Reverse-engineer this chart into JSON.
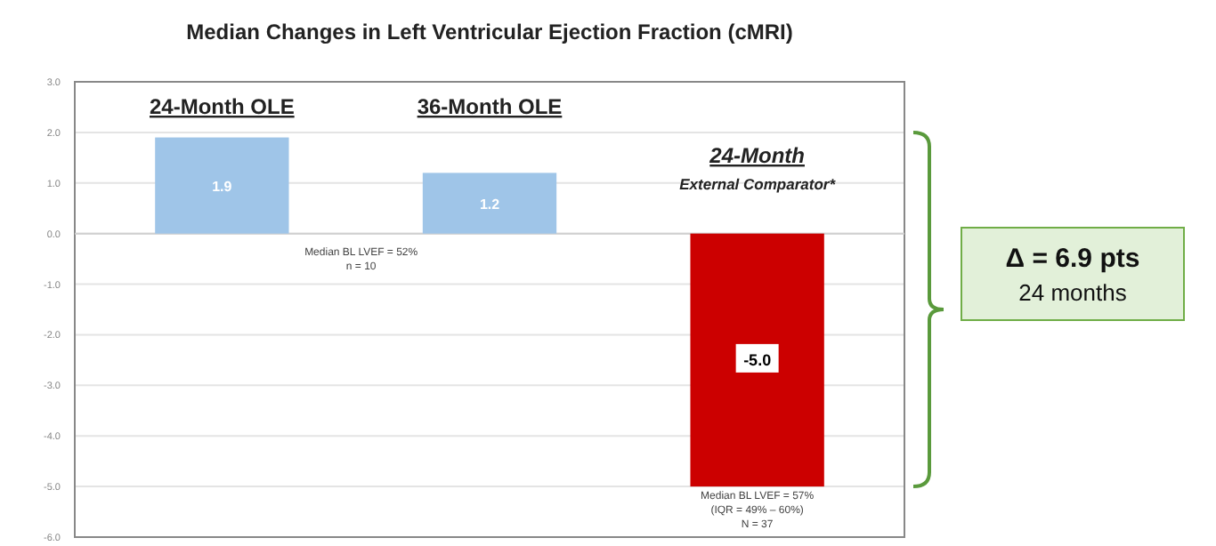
{
  "chart_data": {
    "type": "bar",
    "title": "Median Changes in Left Ventricular Ejection Fraction (cMRI)",
    "categories": [
      "24-Month OLE",
      "36-Month OLE",
      "24-Month\nExternal Comparator*"
    ],
    "values": [
      1.9,
      1.2,
      -5.0
    ],
    "colors": [
      "#9fc5e8",
      "#9fc5e8",
      "#cc0000"
    ],
    "value_labels": [
      "1.9",
      "1.2",
      "-5.0"
    ],
    "ylim": [
      -6,
      3
    ],
    "yticks": [
      {
        "value": 3,
        "label": "3.0"
      },
      {
        "value": 2,
        "label": "2.0"
      },
      {
        "value": 1,
        "label": "1.0"
      },
      {
        "value": 0,
        "label": "0.0"
      },
      {
        "value": -1,
        "label": "-1.0"
      },
      {
        "value": -2,
        "label": "-2.0"
      },
      {
        "value": -3,
        "label": "-3.0"
      },
      {
        "value": -4,
        "label": "-4.0"
      },
      {
        "value": -5,
        "label": "-5.0"
      },
      {
        "value": -6,
        "label": "-6.0"
      }
    ],
    "grid": "y",
    "annotations": [
      "Median BL LVEF = 52%\nn = 10",
      "Median BL LVEF = 57%\n(IQR = 49% – 60%)\nN = 37",
      "Δ = 6.9 pts\n24 months"
    ]
  }
}
